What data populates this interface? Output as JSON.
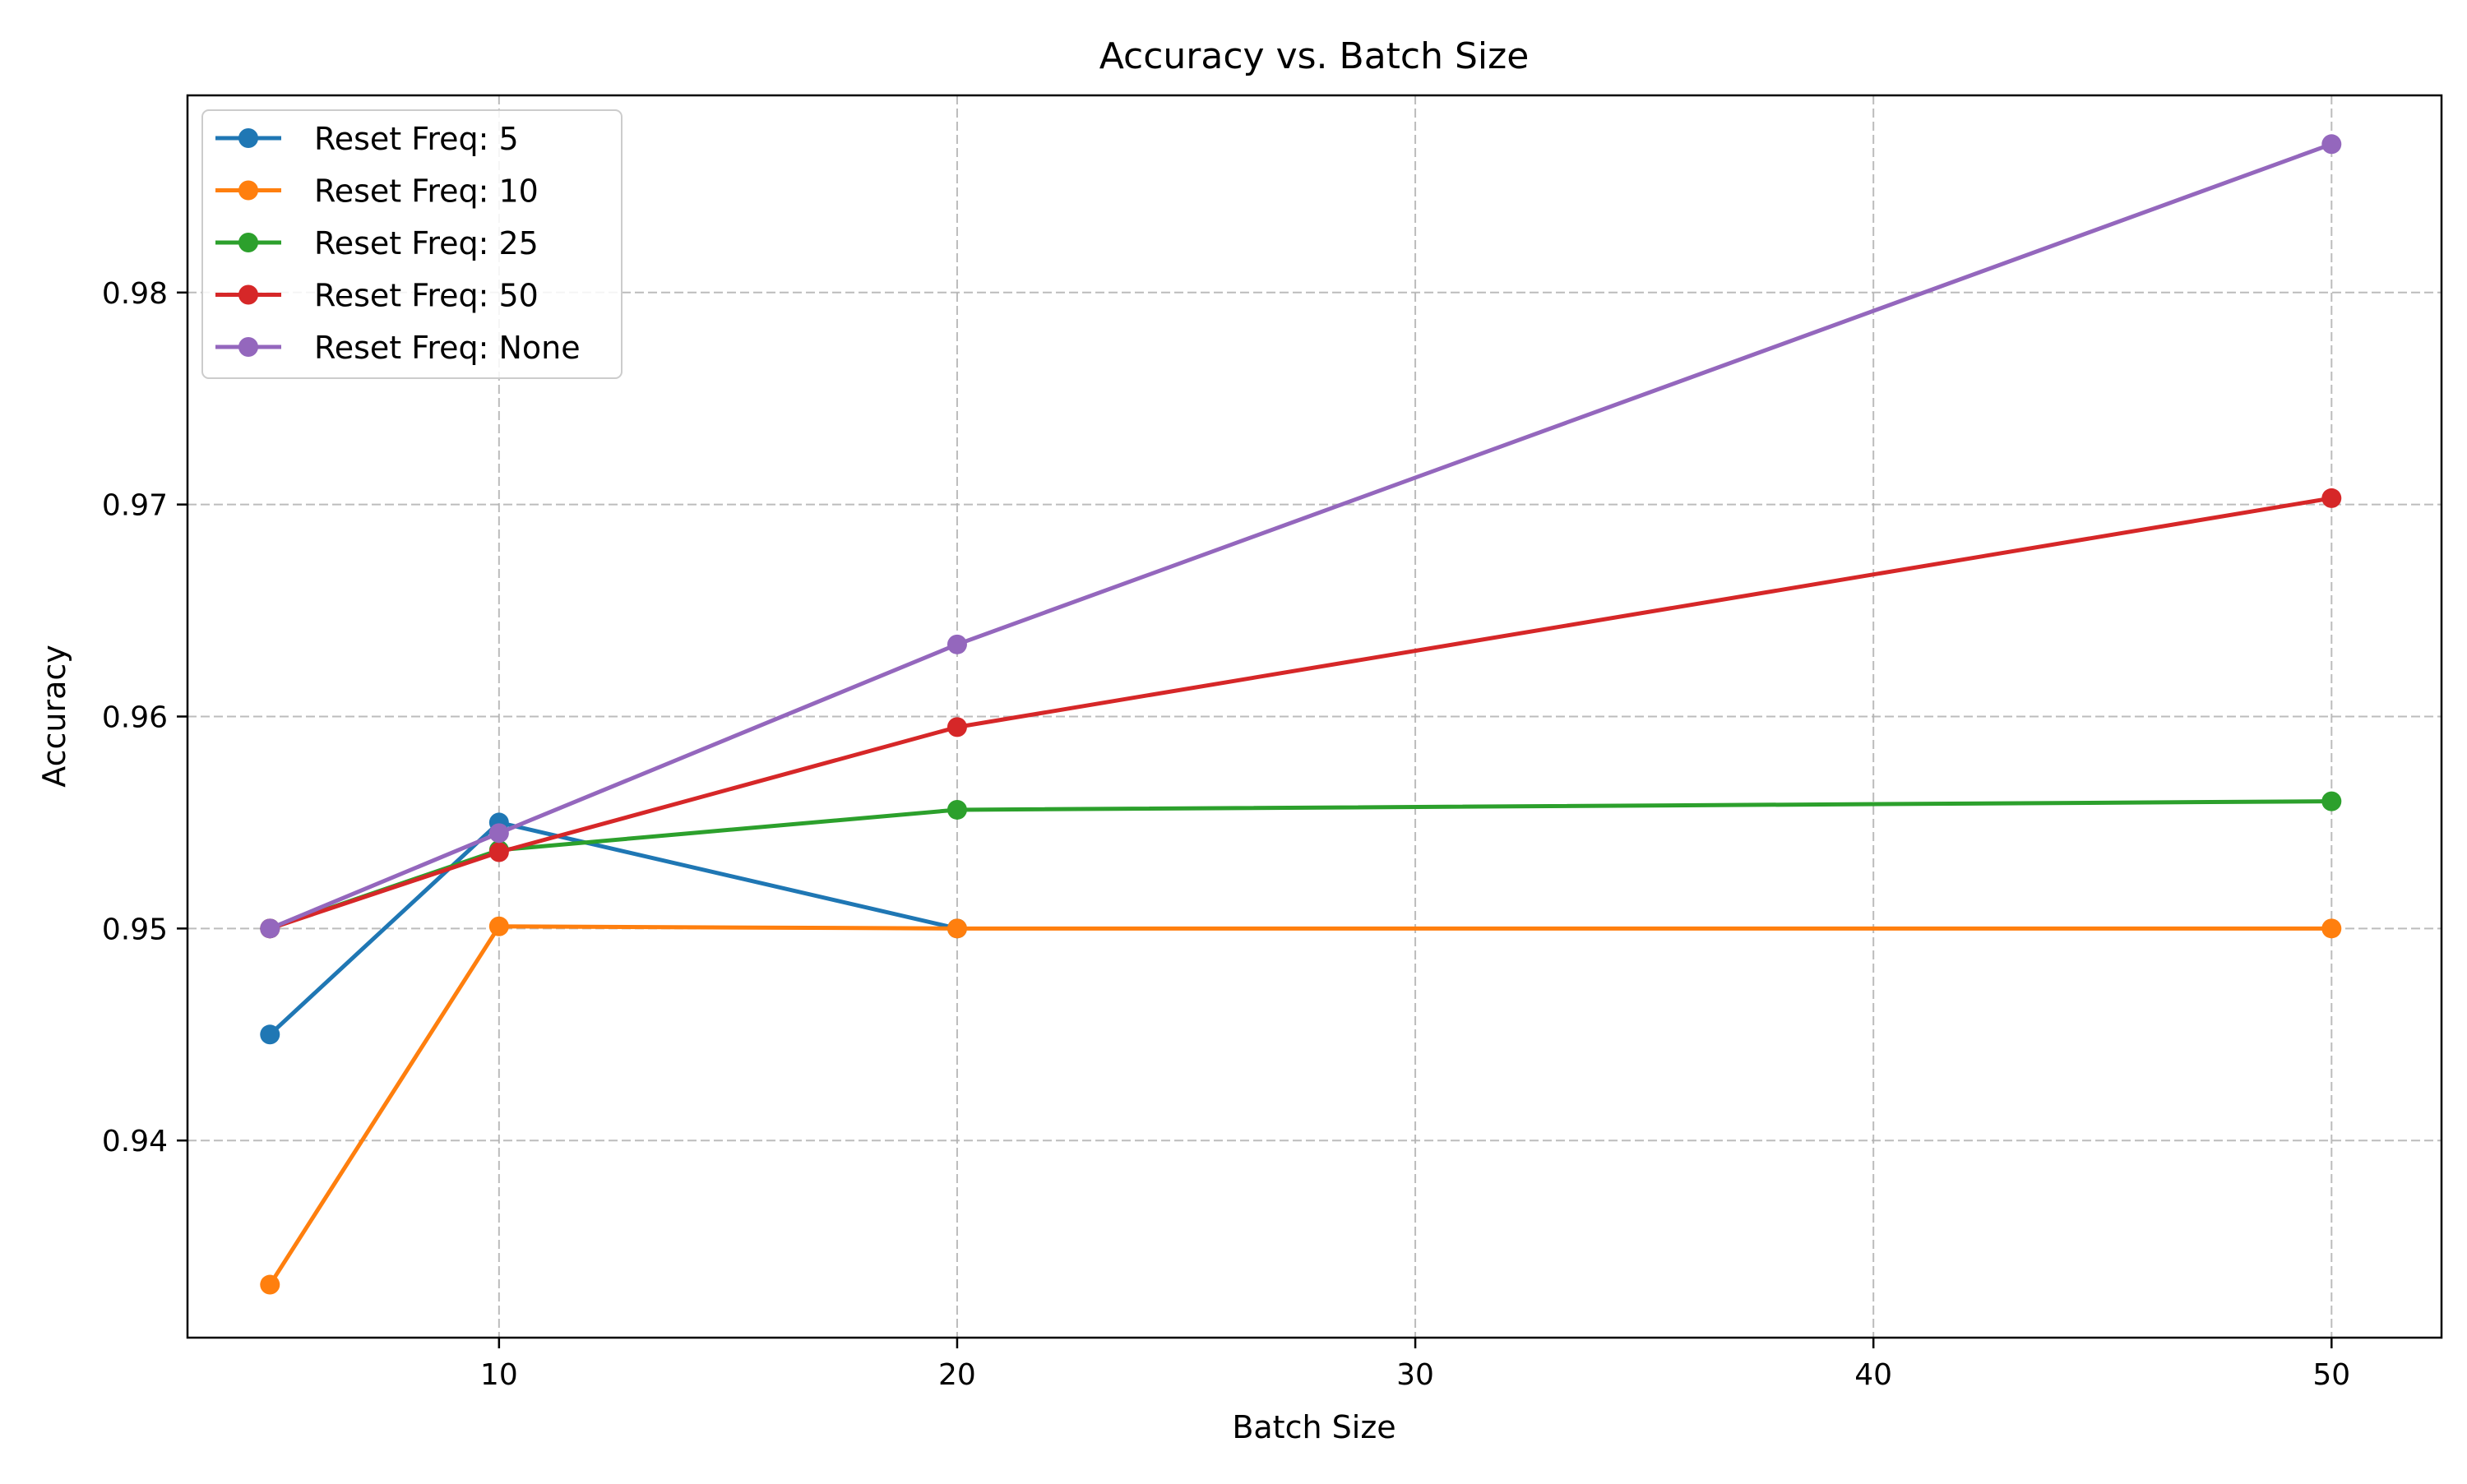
{
  "chart_data": {
    "type": "line",
    "title": "Accuracy vs. Batch Size",
    "xlabel": "Batch Size",
    "ylabel": "Accuracy",
    "x": [
      5,
      10,
      20,
      50
    ],
    "xlim": [
      3.2,
      52.4
    ],
    "ylim": [
      0.9307,
      0.9893
    ],
    "x_ticks": [
      10,
      20,
      30,
      40,
      50
    ],
    "x_tick_labels": [
      "10",
      "20",
      "30",
      "40",
      "50"
    ],
    "y_ticks": [
      0.94,
      0.95,
      0.96,
      0.97,
      0.98
    ],
    "y_tick_labels": [
      "0.94",
      "0.95",
      "0.96",
      "0.97",
      "0.98"
    ],
    "grid": true,
    "legend_position": "top-left",
    "series": [
      {
        "name": "Reset Freq: 5",
        "color": "#1f77b4",
        "values": [
          0.945,
          0.955,
          0.95,
          null
        ]
      },
      {
        "name": "Reset Freq: 10",
        "color": "#ff7f0e",
        "values": [
          0.9332,
          0.9501,
          0.95,
          0.95
        ]
      },
      {
        "name": "Reset Freq: 25",
        "color": "#2ca02c",
        "values": [
          0.95,
          0.9537,
          0.9556,
          0.956
        ]
      },
      {
        "name": "Reset Freq: 50",
        "color": "#d62728",
        "values": [
          0.95,
          0.9536,
          0.9595,
          0.9703
        ]
      },
      {
        "name": "Reset Freq: None",
        "color": "#9467bd",
        "values": [
          0.95,
          0.9545,
          0.9634,
          0.987
        ]
      }
    ]
  }
}
